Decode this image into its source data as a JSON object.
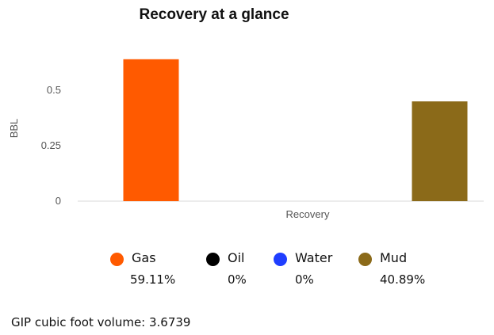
{
  "chart_data": {
    "type": "bar",
    "title": "Recovery at a glance",
    "xlabel": "Recovery",
    "ylabel": "BBL",
    "ylim": [
      0,
      0.7
    ],
    "yticks": [
      0,
      0.25,
      0.5
    ],
    "ytick_labels": [
      "0",
      "0.25",
      "0.5"
    ],
    "grid": false,
    "legend_position": "bottom",
    "series": [
      {
        "name": "Gas",
        "value": 0.64,
        "percent": "59.11%",
        "color": "#FF5A00"
      },
      {
        "name": "Oil",
        "value": 0,
        "percent": "0%",
        "color": "#000000"
      },
      {
        "name": "Water",
        "value": 0,
        "percent": "0%",
        "color": "#1F3EFF"
      },
      {
        "name": "Mud",
        "value": 0.45,
        "percent": "40.89%",
        "color": "#8B6A19"
      }
    ]
  },
  "footer": {
    "text": "GIP cubic foot volume: 3.6739"
  }
}
